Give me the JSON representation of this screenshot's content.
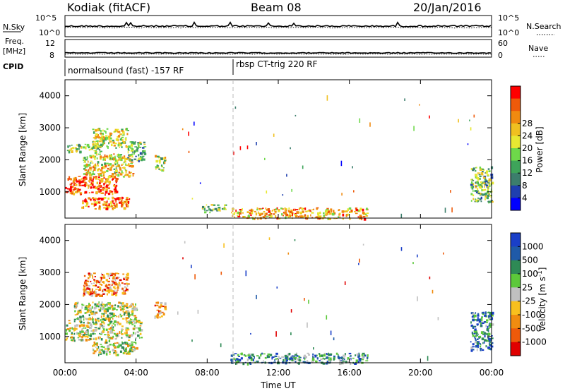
{
  "header": {
    "station": "Kodiak (fitACF)",
    "beam": "Beam 08",
    "date": "20/Jan/2016"
  },
  "strip_labels": {
    "nsky": "N.Sky",
    "nsearch": "N.Search",
    "freq": "Freq.",
    "freq_unit": "[MHz]",
    "nave": "Nave",
    "cpid": "CPID",
    "nsky_ticks": [
      "10^5",
      "10^0"
    ],
    "nsearch_ticks": [
      "10^5",
      "10^0"
    ],
    "freq_ticks": [
      "12",
      "8"
    ],
    "nave_ticks": [
      "60",
      "0"
    ]
  },
  "cpid_segments": [
    {
      "start_hour": 0.0,
      "label": "normalsound (fast) -157 RF"
    },
    {
      "start_hour": 9.45,
      "label": "rbsp CT-trig 220 RF"
    }
  ],
  "chart_data": [
    {
      "type": "heatmap",
      "panel": "power",
      "ylabel": "Slant Range [km]",
      "xlabel": "",
      "x_range_hours": [
        0,
        24
      ],
      "y_range_km": [
        180,
        4500
      ],
      "y_ticks": [
        "1000",
        "2000",
        "3000",
        "4000"
      ],
      "colorbar_label": "Power [dB]",
      "colorbar_ticks": [
        "4",
        "8",
        "12",
        "16",
        "20",
        "24",
        "28"
      ],
      "colorbar_colors": [
        "#0000ff",
        "#1f3faf",
        "#3c7e6c",
        "#3ea45a",
        "#6ed84a",
        "#e8e832",
        "#f0c020",
        "#f08a10",
        "#ee5a0a",
        "#ff0000"
      ],
      "regions": [
        {
          "t0": 0.1,
          "t1": 2.0,
          "r0": 2250,
          "r1": 2500,
          "level": 0.45
        },
        {
          "t0": 1.5,
          "t1": 3.5,
          "r0": 2400,
          "r1": 3000,
          "level": 0.55
        },
        {
          "t0": 0.0,
          "t1": 2.9,
          "r0": 950,
          "r1": 1500,
          "level": 0.85
        },
        {
          "t0": 1.0,
          "t1": 3.8,
          "r0": 1500,
          "r1": 2200,
          "level": 0.6
        },
        {
          "t0": 0.9,
          "t1": 3.6,
          "r0": 480,
          "r1": 850,
          "level": 0.8
        },
        {
          "t0": 3.5,
          "t1": 4.5,
          "r0": 2000,
          "r1": 2600,
          "level": 0.4
        },
        {
          "t0": 5.0,
          "t1": 5.6,
          "r0": 1700,
          "r1": 2150,
          "level": 0.5
        },
        {
          "t0": 7.7,
          "t1": 9.0,
          "r0": 380,
          "r1": 620,
          "level": 0.45
        },
        {
          "t0": 9.3,
          "t1": 17.0,
          "r0": 180,
          "r1": 520,
          "level": 0.7
        },
        {
          "t0": 22.8,
          "t1": 24.0,
          "r0": 700,
          "r1": 1800,
          "level": 0.4
        }
      ]
    },
    {
      "type": "heatmap",
      "panel": "velocity",
      "ylabel": "Slant Range [km]",
      "xlabel": "Time UT",
      "x_range_hours": [
        0,
        24
      ],
      "y_range_km": [
        180,
        4500
      ],
      "x_ticks": [
        "00:00",
        "04:00",
        "08:00",
        "12:00",
        "16:00",
        "20:00",
        "00:00"
      ],
      "y_ticks": [
        "1000",
        "2000",
        "3000",
        "4000"
      ],
      "colorbar_label": "Velocity [m s^-1]",
      "colorbar_ticks": [
        "1000",
        "500",
        "100",
        "25",
        "-25",
        "-100",
        "-500",
        "-1000"
      ],
      "colorbar_colors": [
        "#1a3fc8",
        "#1f5aa8",
        "#2e8a55",
        "#5cc83a",
        "#c0c0c0",
        "#f8c01e",
        "#f08c10",
        "#ee5a0a",
        "#e00000"
      ],
      "regions": [
        {
          "t0": 1.0,
          "t1": 3.5,
          "r0": 2300,
          "r1": 3000,
          "level": 0.72
        },
        {
          "t0": 0.0,
          "t1": 4.3,
          "r0": 900,
          "r1": 1550,
          "level": 0.5
        },
        {
          "t0": 0.5,
          "t1": 4.0,
          "r0": 1550,
          "r1": 2100,
          "level": 0.5
        },
        {
          "t0": 1.5,
          "t1": 4.0,
          "r0": 450,
          "r1": 850,
          "level": 0.5
        },
        {
          "t0": 5.0,
          "t1": 5.6,
          "r0": 1600,
          "r1": 2100,
          "level": 0.7
        },
        {
          "t0": 9.3,
          "t1": 17.0,
          "r0": 180,
          "r1": 500,
          "level": 0.3
        },
        {
          "t0": 22.8,
          "t1": 24.0,
          "r0": 600,
          "r1": 1800,
          "level": 0.25
        }
      ]
    }
  ]
}
